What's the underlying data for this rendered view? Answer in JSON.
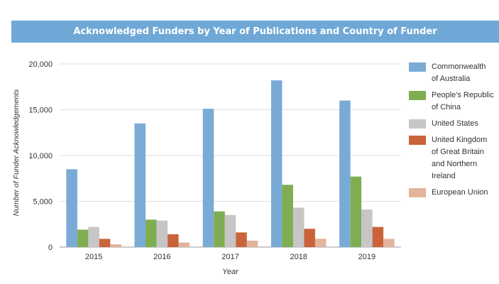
{
  "chart_data": {
    "type": "bar",
    "title": "Acknowledged Funders by Year of Publications and Country of Funder",
    "xlabel": "Year",
    "ylabel": "Number of Funder Acknowledgements",
    "categories": [
      "2015",
      "2016",
      "2017",
      "2018",
      "2019"
    ],
    "ylim": [
      0,
      20000
    ],
    "yticks": [
      0,
      5000,
      10000,
      15000,
      20000
    ],
    "ytick_labels": [
      "0",
      "5,000",
      "10,000",
      "15,000",
      "20,000"
    ],
    "grid": true,
    "legend_position": "right",
    "series": [
      {
        "name": "Commonwealth of Australia",
        "color": "#7aaad6",
        "values": [
          8500,
          13500,
          15100,
          18200,
          16000
        ]
      },
      {
        "name": "People's Republic of China",
        "color": "#7fae52",
        "values": [
          1900,
          3000,
          3900,
          6800,
          7700
        ]
      },
      {
        "name": "United States",
        "color": "#c6c6c6",
        "values": [
          2200,
          2900,
          3500,
          4300,
          4100
        ]
      },
      {
        "name": "United Kingdom of Great Britain and Northern Ireland",
        "color": "#c9643a",
        "values": [
          900,
          1400,
          1600,
          2000,
          2200
        ]
      },
      {
        "name": "European Union",
        "color": "#e4b39b",
        "values": [
          300,
          500,
          700,
          900,
          900
        ]
      }
    ]
  }
}
